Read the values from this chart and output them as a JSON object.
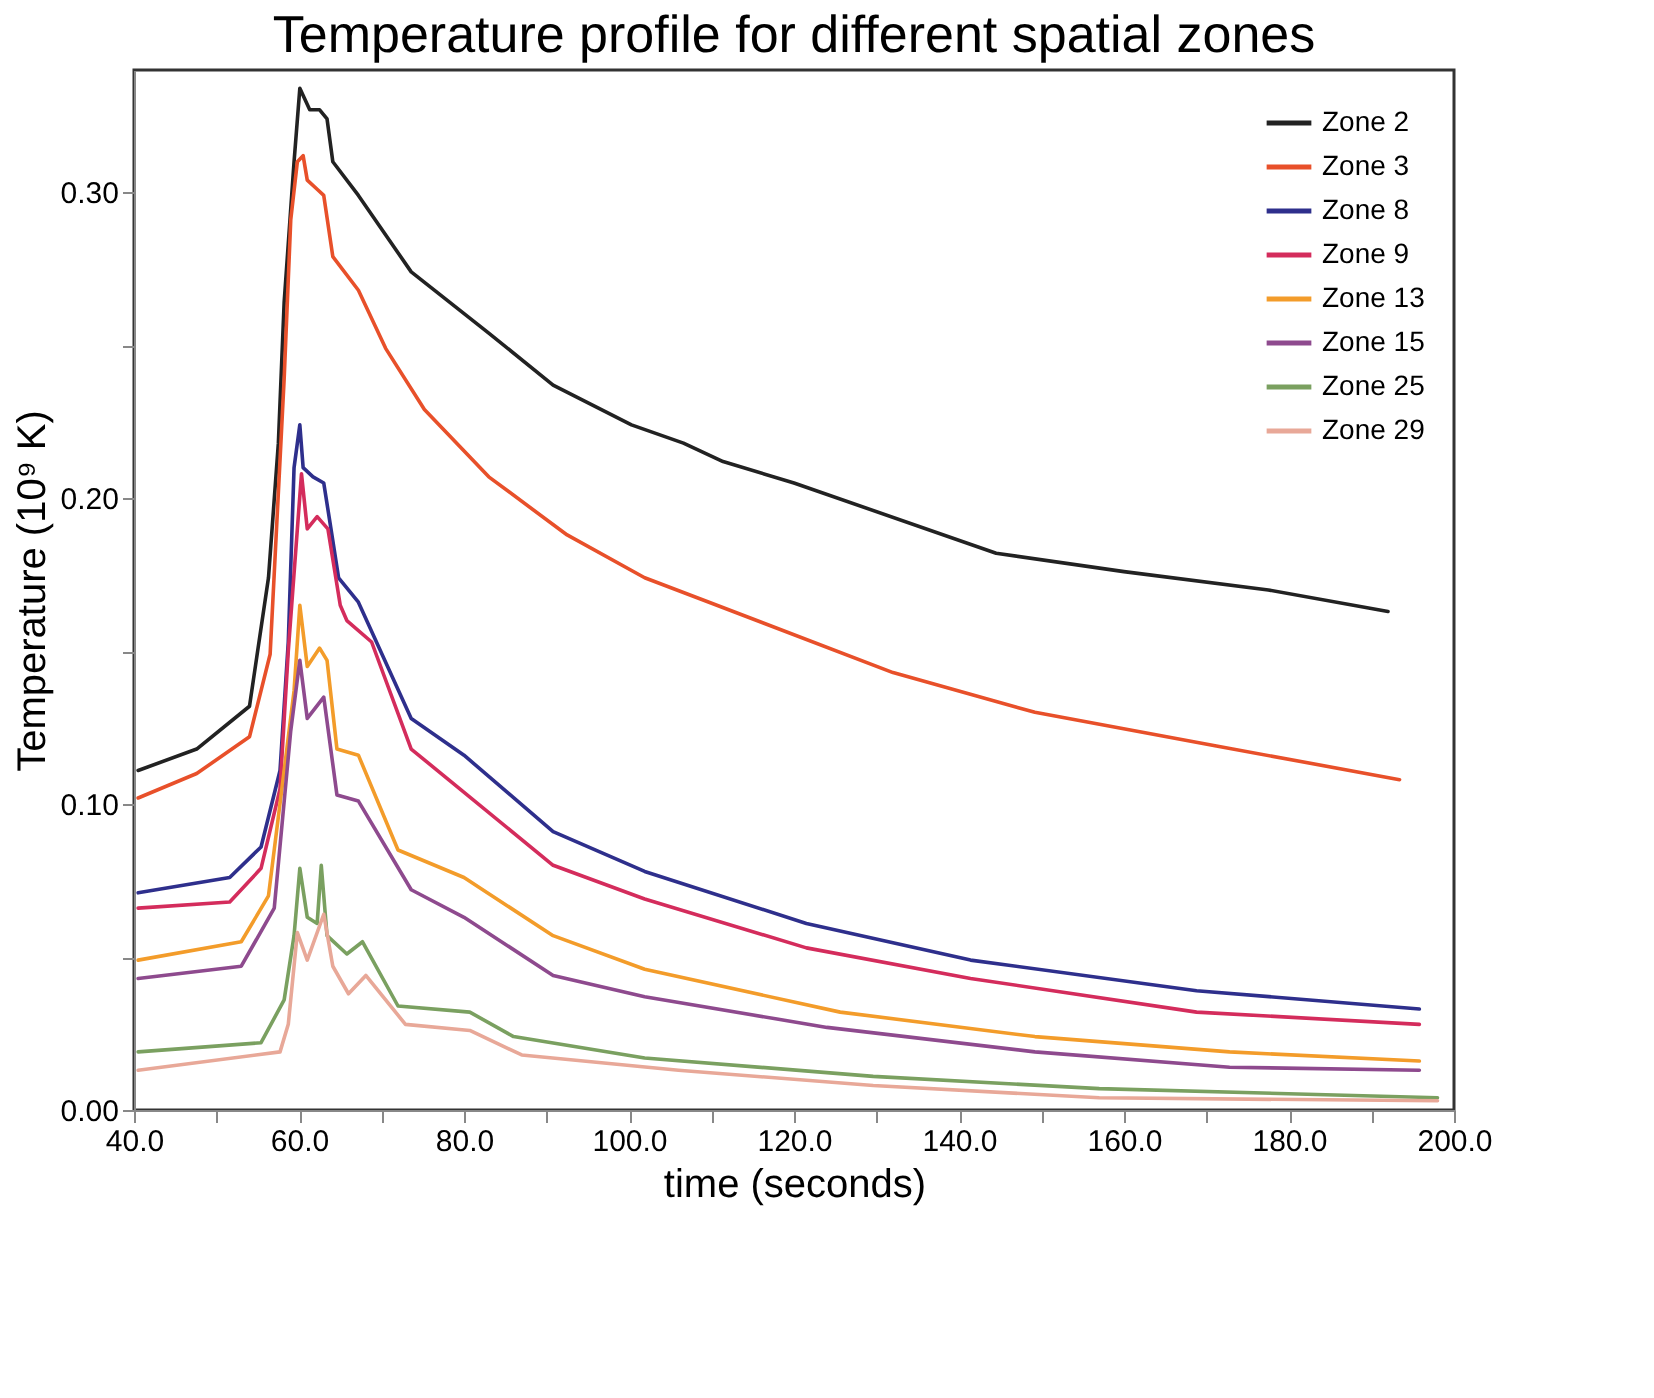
{
  "chart_data": {
    "type": "line",
    "title": "Temperature profile for different spatial zones",
    "xlabel": "time (seconds)",
    "ylabel": "Temperature (10⁹ K)",
    "xlim": [
      40,
      200
    ],
    "ylim": [
      0,
      0.34
    ],
    "xticks": [
      {
        "value": 40,
        "label": "40.0"
      },
      {
        "value": 50,
        "label": null
      },
      {
        "value": 60,
        "label": "60.0"
      },
      {
        "value": 70,
        "label": null
      },
      {
        "value": 80,
        "label": "80.0"
      },
      {
        "value": 90,
        "label": null
      },
      {
        "value": 100,
        "label": "100.0"
      },
      {
        "value": 110,
        "label": null
      },
      {
        "value": 120,
        "label": "120.0"
      },
      {
        "value": 130,
        "label": null
      },
      {
        "value": 140,
        "label": "140.0"
      },
      {
        "value": 150,
        "label": null
      },
      {
        "value": 160,
        "label": "160.0"
      },
      {
        "value": 170,
        "label": null
      },
      {
        "value": 180,
        "label": "180.0"
      },
      {
        "value": 190,
        "label": null
      },
      {
        "value": 200,
        "label": "200.0"
      }
    ],
    "yticks": [
      {
        "value": 0,
        "label": "0.00"
      },
      {
        "value": 0.05,
        "label": null
      },
      {
        "value": 0.1,
        "label": "0.10"
      },
      {
        "value": 0.15,
        "label": null
      },
      {
        "value": 0.2,
        "label": "0.20"
      },
      {
        "value": 0.25,
        "label": null
      },
      {
        "value": 0.3,
        "label": "0.30"
      }
    ],
    "grid": false,
    "legend": "top right",
    "line_style": "solid",
    "series": [
      {
        "name": "Zone 2",
        "color": "#222222",
        "x": [
          40.5,
          47.6,
          54,
          56.3,
          57.5,
          58.2,
          59.4,
          60.1,
          61.3,
          62.5,
          63.4,
          64.1,
          67.2,
          73.6,
          83,
          90.8,
          100.3,
          106.6,
          111.4,
          120,
          144.5,
          160,
          177.5,
          192
        ],
        "values": [
          0.111,
          0.118,
          0.132,
          0.174,
          0.218,
          0.264,
          0.31,
          0.334,
          0.327,
          0.327,
          0.324,
          0.31,
          0.299,
          0.274,
          0.254,
          0.237,
          0.224,
          0.218,
          0.212,
          0.205,
          0.182,
          0.176,
          0.17,
          0.163
        ]
      },
      {
        "name": "Zone 3",
        "color": "#e8502a",
        "x": [
          40.5,
          47.6,
          54,
          56.5,
          58.2,
          59,
          59.8,
          60.5,
          61,
          62.2,
          63,
          64.1,
          67.2,
          70.5,
          75.2,
          83,
          92.5,
          101.9,
          109.7,
          132,
          149.2,
          171.2,
          193.4
        ],
        "values": [
          0.102,
          0.11,
          0.122,
          0.149,
          0.239,
          0.291,
          0.31,
          0.312,
          0.304,
          0.301,
          0.299,
          0.279,
          0.268,
          0.249,
          0.229,
          0.207,
          0.188,
          0.174,
          0.166,
          0.143,
          0.13,
          0.119,
          0.108
        ]
      },
      {
        "name": "Zone 8",
        "color": "#2e2f8c",
        "x": [
          40.5,
          51.6,
          55.4,
          57.7,
          58.7,
          59.4,
          60.1,
          60.5,
          61.7,
          63,
          63.7,
          64.8,
          67.2,
          73.6,
          80,
          90.8,
          101.9,
          121.5,
          141.4,
          168.8,
          195.8
        ],
        "values": [
          0.071,
          0.076,
          0.086,
          0.111,
          0.153,
          0.21,
          0.224,
          0.21,
          0.207,
          0.205,
          0.193,
          0.174,
          0.166,
          0.128,
          0.116,
          0.091,
          0.078,
          0.061,
          0.049,
          0.039,
          0.033
        ]
      },
      {
        "name": "Zone 9",
        "color": "#d42c5c",
        "x": [
          40.5,
          51.6,
          55.4,
          57.7,
          58.7,
          60.3,
          61,
          62.2,
          63.5,
          65,
          65.8,
          68.8,
          73.6,
          90.8,
          101.9,
          121.5,
          141.4,
          168.8,
          195.8
        ],
        "values": [
          0.066,
          0.068,
          0.079,
          0.105,
          0.15,
          0.208,
          0.19,
          0.194,
          0.19,
          0.165,
          0.16,
          0.153,
          0.118,
          0.08,
          0.069,
          0.053,
          0.043,
          0.032,
          0.028
        ]
      },
      {
        "name": "Zone 13",
        "color": "#f39c2a",
        "x": [
          40.5,
          53,
          56.3,
          58.2,
          59.4,
          60.1,
          61,
          62.5,
          63.4,
          64.6,
          67.2,
          72,
          80,
          90.8,
          101.9,
          125.6,
          149.2,
          172.8,
          195.8
        ],
        "values": [
          0.049,
          0.055,
          0.07,
          0.111,
          0.137,
          0.165,
          0.145,
          0.151,
          0.147,
          0.118,
          0.116,
          0.085,
          0.076,
          0.057,
          0.046,
          0.032,
          0.024,
          0.019,
          0.016
        ]
      },
      {
        "name": "Zone 15",
        "color": "#8e4a8e",
        "x": [
          40.5,
          53,
          57,
          59,
          60.1,
          61,
          63,
          64.6,
          67.2,
          73.6,
          80,
          90.8,
          101.9,
          124,
          149.2,
          172.8,
          195.8
        ],
        "values": [
          0.043,
          0.047,
          0.066,
          0.124,
          0.147,
          0.128,
          0.135,
          0.103,
          0.101,
          0.072,
          0.063,
          0.044,
          0.037,
          0.027,
          0.019,
          0.014,
          0.013
        ]
      },
      {
        "name": "Zone 25",
        "color": "#7aa060",
        "x": [
          40.5,
          55.4,
          58.2,
          59.4,
          60.1,
          61,
          62.2,
          62.7,
          63.4,
          65.8,
          67.7,
          72,
          80.7,
          86,
          101.9,
          129.6,
          157,
          198
        ],
        "values": [
          0.019,
          0.022,
          0.036,
          0.057,
          0.079,
          0.063,
          0.061,
          0.08,
          0.057,
          0.051,
          0.055,
          0.034,
          0.032,
          0.024,
          0.017,
          0.011,
          0.007,
          0.004
        ]
      },
      {
        "name": "Zone 29",
        "color": "#e8a898",
        "x": [
          40.5,
          57.7,
          58.7,
          59.8,
          61,
          63,
          64.1,
          66,
          68.1,
          72.9,
          80.7,
          87,
          106,
          129.6,
          157,
          198
        ],
        "values": [
          0.013,
          0.019,
          0.028,
          0.058,
          0.049,
          0.064,
          0.047,
          0.038,
          0.044,
          0.028,
          0.026,
          0.018,
          0.013,
          0.008,
          0.004,
          0.003
        ]
      }
    ]
  }
}
